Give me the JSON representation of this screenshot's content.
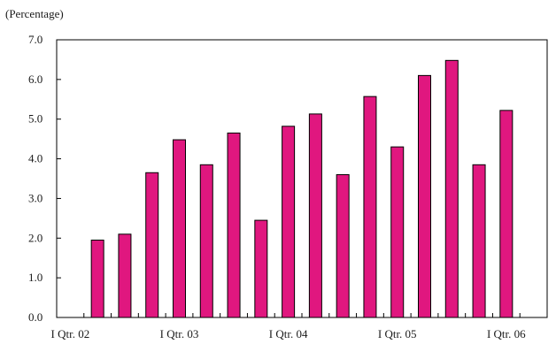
{
  "chart_data": {
    "type": "bar",
    "ylabel": "(Percentage)",
    "ylim": [
      0,
      7
    ],
    "yticks": [
      "0.0",
      "1.0",
      "2.0",
      "3.0",
      "4.0",
      "5.0",
      "6.0",
      "7.0"
    ],
    "grid": false,
    "bar_color": "#e0177f",
    "categories": [
      "Q1 2002",
      "Q2 2002",
      "Q3 2002",
      "Q4 2002",
      "Q1 2003",
      "Q2 2003",
      "Q3 2003",
      "Q4 2003",
      "Q1 2004",
      "Q2 2004",
      "Q3 2004",
      "Q4 2004",
      "Q1 2005",
      "Q2 2005",
      "Q3 2005",
      "Q4 2005",
      "Q1 2006",
      "Q2 2006"
    ],
    "values": [
      null,
      1.95,
      2.1,
      3.65,
      4.48,
      3.85,
      4.65,
      2.45,
      4.82,
      5.13,
      3.6,
      5.57,
      4.3,
      6.1,
      6.48,
      3.85,
      5.22,
      null
    ],
    "xtick_labels": [
      {
        "label": "I Qtr. 02",
        "index": 0
      },
      {
        "label": "I Qtr. 03",
        "index": 4
      },
      {
        "label": "I Qtr. 04",
        "index": 8
      },
      {
        "label": "I Qtr. 05",
        "index": 12
      },
      {
        "label": "I Qtr. 06",
        "index": 16
      }
    ]
  }
}
